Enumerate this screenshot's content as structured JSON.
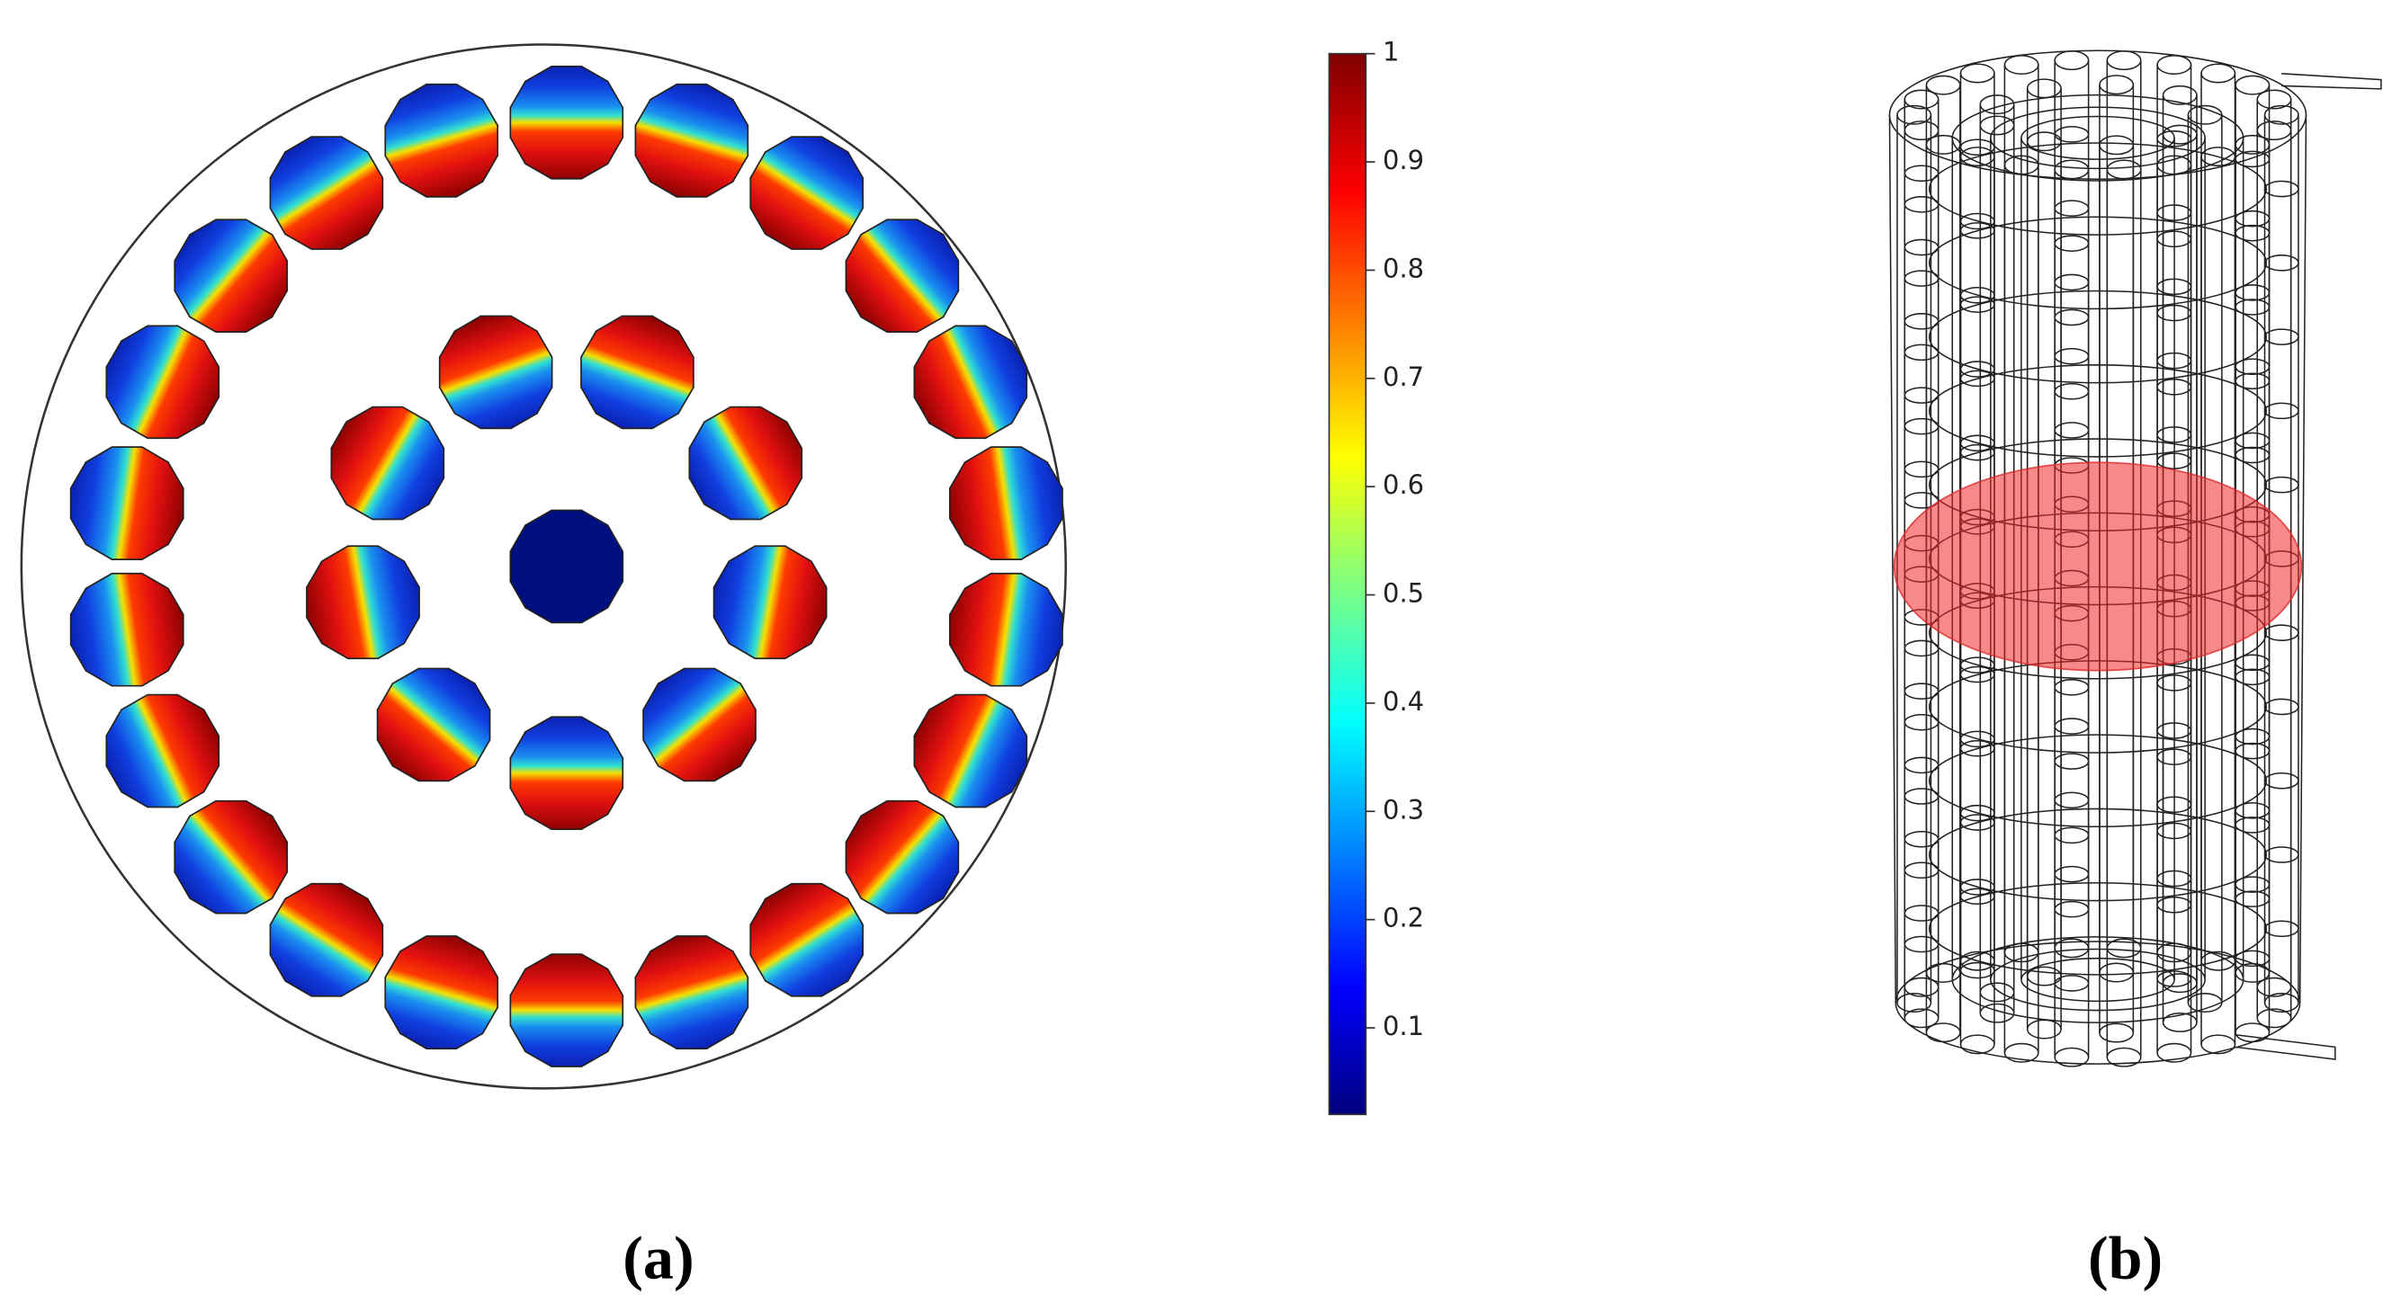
{
  "panel_a": {
    "label": "(a)",
    "colorbar": {
      "range": [
        0.02,
        1
      ],
      "ticks": [
        0.1,
        0.2,
        0.3,
        0.4,
        0.5,
        0.6,
        0.7,
        0.8,
        0.9,
        1
      ]
    }
  },
  "panel_b": {
    "label": "(b)"
  }
}
